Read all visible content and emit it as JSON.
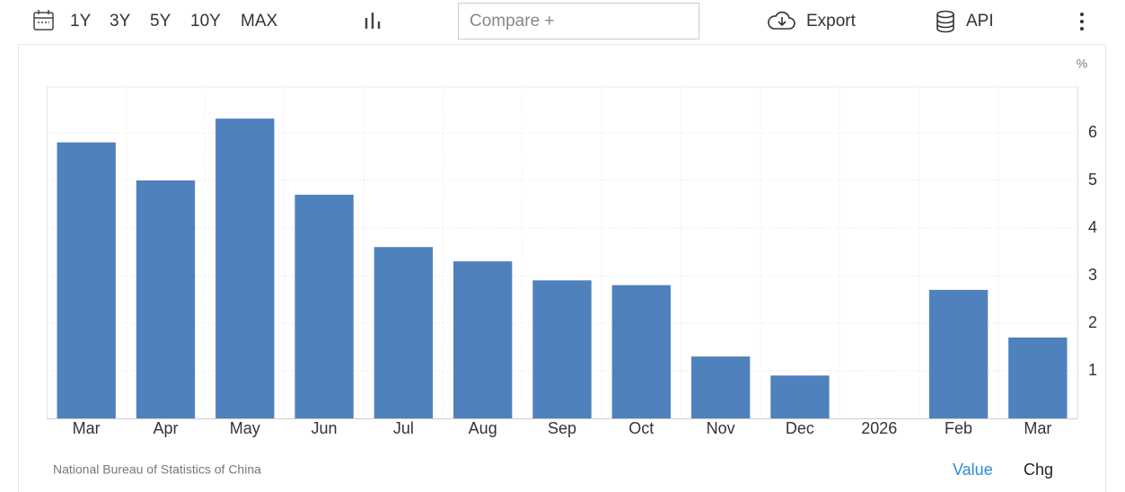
{
  "toolbar": {
    "ranges": [
      "1Y",
      "3Y",
      "5Y",
      "10Y",
      "MAX"
    ],
    "compare": "Compare +",
    "export": "Export",
    "api": "API"
  },
  "chart_data": {
    "type": "bar",
    "unit": "%",
    "categories": [
      "Mar",
      "Apr",
      "May",
      "Jun",
      "Jul",
      "Aug",
      "Sep",
      "Oct",
      "Nov",
      "Dec",
      "2026",
      "Feb",
      "Mar"
    ],
    "values": [
      5.8,
      5.0,
      6.3,
      4.7,
      3.6,
      3.3,
      2.9,
      2.8,
      1.3,
      0.9,
      null,
      2.7,
      1.7
    ],
    "color": "#4f81bd",
    "ylim": [
      0,
      7
    ],
    "yticks": [
      1,
      2,
      3,
      4,
      5,
      6
    ],
    "grid": true,
    "y_axis_side": "right"
  },
  "footer": {
    "source": "National Bureau of Statistics of China",
    "tabs": [
      "Value",
      "Chg"
    ]
  }
}
